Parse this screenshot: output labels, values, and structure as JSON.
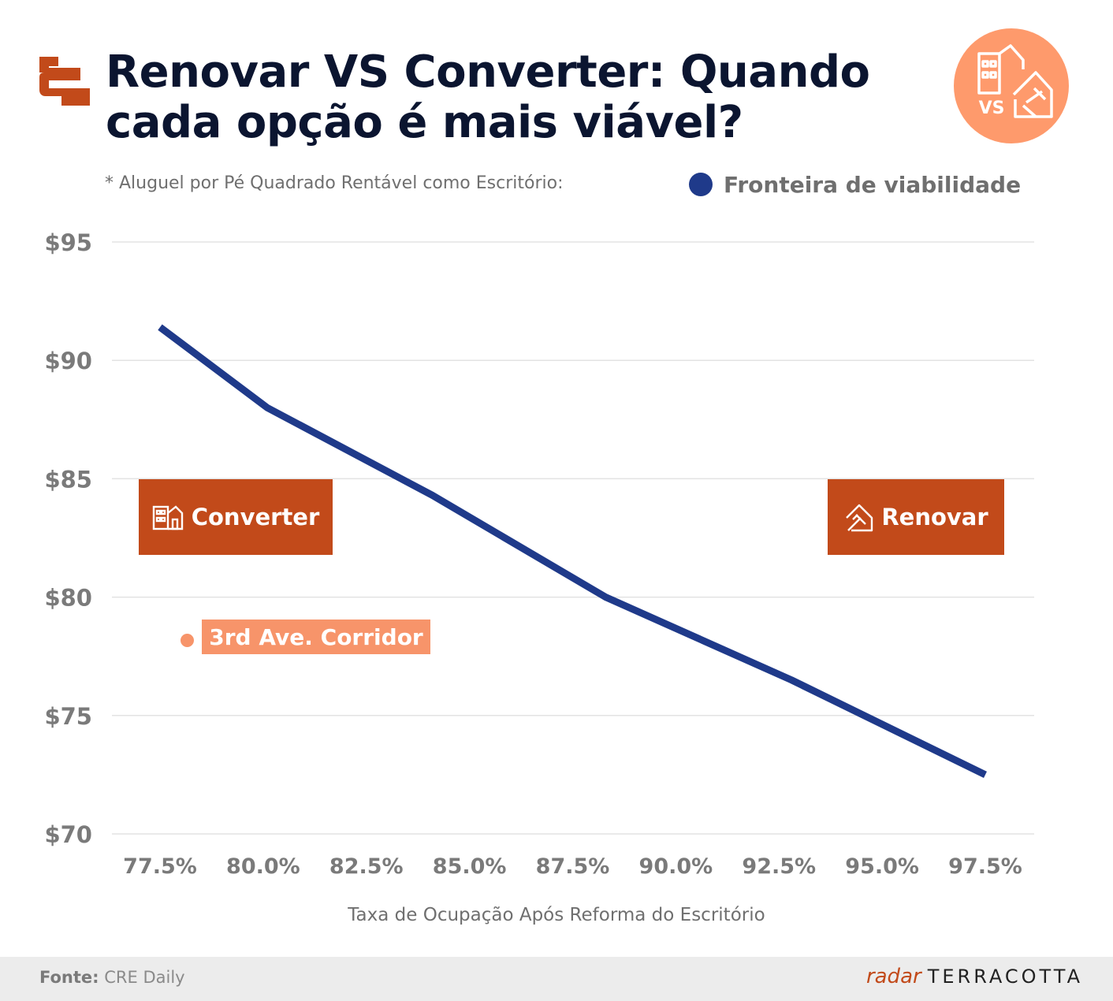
{
  "header": {
    "title": "Renovar VS Converter: Quando cada opção é mais viável?",
    "vs_text": "VS"
  },
  "subtitle": "* Aluguel por Pé Quadrado Rentável como Escritório:",
  "legend": {
    "label": "Fronteira de viabilidade",
    "color": "#1f3a8a"
  },
  "regions": {
    "converter": "Converter",
    "renovar": "Renovar"
  },
  "annotation": {
    "label": "3rd Ave. Corridor",
    "color": "#f7946a"
  },
  "colors": {
    "accent": "#c24a1a",
    "line": "#1f3a8a",
    "annotation": "#f7946a"
  },
  "footer": {
    "source_label": "Fonte:",
    "source_value": "CRE Daily",
    "brand_radar": "radar",
    "brand_terracotta": "TERRACOTTA"
  },
  "chart_data": {
    "type": "line",
    "xlabel": "Taxa de Ocupação Após Reforma do Escritório",
    "ylabel": "",
    "xlim": [
      77.5,
      97.5
    ],
    "ylim": [
      70,
      95
    ],
    "x_ticks": [
      "77.5%",
      "80.0%",
      "82.5%",
      "85.0%",
      "87.5%",
      "90.0%",
      "92.5%",
      "95.0%",
      "97.5%"
    ],
    "y_ticks": [
      "$70",
      "$75",
      "$80",
      "$85",
      "$90",
      "$95"
    ],
    "y_tick_values": [
      70,
      75,
      80,
      85,
      90,
      95
    ],
    "grid": "horizontal",
    "legend_position": "top-right",
    "series": [
      {
        "name": "Fronteira de viabilidade",
        "points": [
          [
            77.5,
            91.4
          ],
          [
            80.1,
            88.0
          ],
          [
            84.1,
            84.3
          ],
          [
            88.3,
            80.0
          ],
          [
            92.8,
            76.5
          ],
          [
            97.5,
            72.5
          ]
        ]
      }
    ],
    "annotations": [
      {
        "label": "3rd Ave. Corridor",
        "x": 78.1,
        "y": 78.2
      }
    ]
  }
}
